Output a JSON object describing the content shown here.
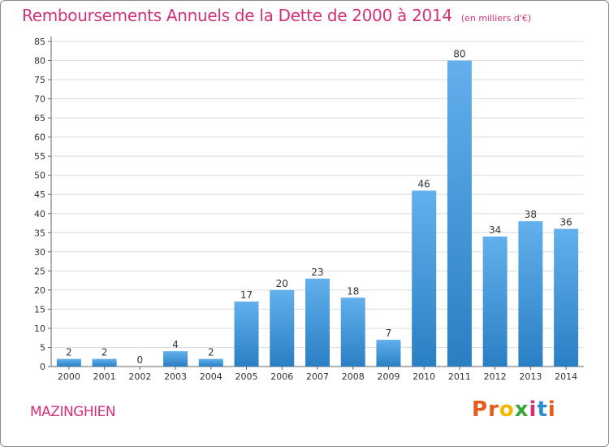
{
  "title": "Remboursements Annuels de la Dette de 2000 à 2014",
  "subtitle": "(en milliers d'€)",
  "commune": "MAZINGHIEN",
  "logo": {
    "text": "Proxiti",
    "colors": [
      "#e85a1b",
      "#e85a1b",
      "#f7b500",
      "#3aa43a",
      "#d2317a",
      "#2a8bd6",
      "#e85a1b"
    ]
  },
  "colors": {
    "bar_light": "#62b0ec",
    "bar_dark": "#2a7fc3",
    "title": "#d2317a",
    "grid": "#dcdcdc",
    "axis": "#666666"
  },
  "chart_data": {
    "type": "bar",
    "categories": [
      "2000",
      "2001",
      "2002",
      "2003",
      "2004",
      "2005",
      "2006",
      "2007",
      "2008",
      "2009",
      "2010",
      "2011",
      "2012",
      "2013",
      "2014"
    ],
    "values": [
      2,
      2,
      0,
      4,
      2,
      17,
      20,
      23,
      18,
      7,
      46,
      80,
      34,
      38,
      36
    ],
    "ylim": [
      0,
      85
    ],
    "yticks": [
      0,
      5,
      10,
      15,
      20,
      25,
      30,
      35,
      40,
      45,
      50,
      55,
      60,
      65,
      70,
      75,
      80,
      85
    ],
    "grid": true,
    "legend": "none"
  }
}
